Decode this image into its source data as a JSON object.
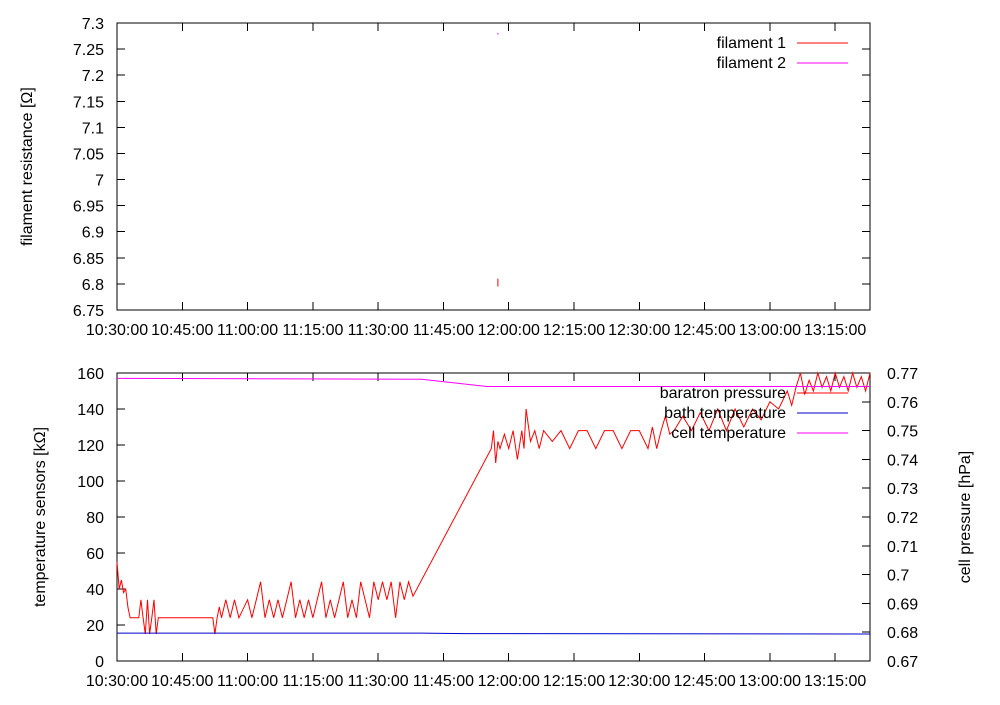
{
  "chart_data": [
    {
      "type": "line",
      "ylabel": "filament resistance [Ω]",
      "ylim": [
        6.75,
        7.3
      ],
      "yticks": [
        "6.75",
        "6.8",
        "6.85",
        "6.9",
        "6.95",
        "7",
        "7.05",
        "7.1",
        "7.15",
        "7.2",
        "7.25",
        "7.3"
      ],
      "xticks": [
        "10:30:00",
        "10:45:00",
        "11:00:00",
        "11:15:00",
        "11:30:00",
        "11:45:00",
        "12:00:00",
        "12:15:00",
        "12:30:00",
        "12:45:00",
        "13:00:00",
        "13:15:00"
      ],
      "xlim": [
        "10:30:00",
        "13:23:00"
      ],
      "legend_position": "top-right",
      "grid": false,
      "series": [
        {
          "name": "filament 1",
          "color": "#ff0000",
          "points": [
            [
              "11:57:30",
              6.795
            ],
            [
              "11:57:30",
              6.81
            ]
          ]
        },
        {
          "name": "filament 2",
          "color": "#ff00ff",
          "points": [
            [
              "11:57:30",
              7.278
            ],
            [
              "11:57:30",
              7.281
            ]
          ]
        }
      ]
    },
    {
      "type": "line",
      "ylabel": "temperature sensors [kΩ]",
      "y2label": "cell pressure [hPa]",
      "ylim": [
        0,
        160
      ],
      "y2lim": [
        0.67,
        0.77
      ],
      "yticks": [
        "0",
        "20",
        "40",
        "60",
        "80",
        "100",
        "120",
        "140",
        "160"
      ],
      "y2ticks": [
        "0.67",
        "0.68",
        "0.69",
        "0.7",
        "0.71",
        "0.72",
        "0.73",
        "0.74",
        "0.75",
        "0.76",
        "0.77"
      ],
      "xticks": [
        "10:30:00",
        "10:45:00",
        "11:00:00",
        "11:15:00",
        "11:30:00",
        "11:45:00",
        "12:00:00",
        "12:15:00",
        "12:30:00",
        "12:45:00",
        "13:00:00",
        "13:15:00"
      ],
      "xlim": [
        "10:30:00",
        "13:23:00"
      ],
      "legend_position": "top-right",
      "grid": false,
      "series": [
        {
          "name": "baratron pressure",
          "color": "#ff0000",
          "axis": "y",
          "points": [
            [
              "10:30:00",
              55
            ],
            [
              "10:30:30",
              40
            ],
            [
              "10:31:00",
              45
            ],
            [
              "10:31:30",
              38
            ],
            [
              "10:32:00",
              40
            ],
            [
              "10:32:30",
              30
            ],
            [
              "10:33:00",
              24
            ],
            [
              "10:35:00",
              24
            ],
            [
              "10:35:30",
              34
            ],
            [
              "10:36:00",
              24
            ],
            [
              "10:36:30",
              15
            ],
            [
              "10:37:00",
              34
            ],
            [
              "10:37:30",
              15
            ],
            [
              "10:38:00",
              24
            ],
            [
              "10:38:30",
              34
            ],
            [
              "10:39:00",
              15
            ],
            [
              "10:39:30",
              24
            ],
            [
              "10:41:00",
              24
            ],
            [
              "10:45:00",
              24
            ],
            [
              "10:50:00",
              24
            ],
            [
              "10:52:00",
              24
            ],
            [
              "10:52:30",
              15
            ],
            [
              "10:53:00",
              24
            ],
            [
              "10:53:30",
              30
            ],
            [
              "10:54:00",
              24
            ],
            [
              "10:55:00",
              34
            ],
            [
              "10:56:00",
              24
            ],
            [
              "10:57:00",
              34
            ],
            [
              "10:58:00",
              24
            ],
            [
              "11:00:00",
              34
            ],
            [
              "11:01:00",
              24
            ],
            [
              "11:02:00",
              34
            ],
            [
              "11:03:00",
              44
            ],
            [
              "11:04:00",
              24
            ],
            [
              "11:05:00",
              34
            ],
            [
              "11:06:00",
              24
            ],
            [
              "11:07:00",
              34
            ],
            [
              "11:08:00",
              24
            ],
            [
              "11:09:00",
              34
            ],
            [
              "11:10:00",
              44
            ],
            [
              "11:11:00",
              24
            ],
            [
              "11:12:00",
              34
            ],
            [
              "11:13:00",
              24
            ],
            [
              "11:14:00",
              34
            ],
            [
              "11:15:00",
              24
            ],
            [
              "11:16:00",
              34
            ],
            [
              "11:17:00",
              44
            ],
            [
              "11:18:00",
              24
            ],
            [
              "11:19:00",
              34
            ],
            [
              "11:20:00",
              24
            ],
            [
              "11:21:00",
              34
            ],
            [
              "11:22:00",
              44
            ],
            [
              "11:23:00",
              24
            ],
            [
              "11:24:00",
              34
            ],
            [
              "11:25:00",
              24
            ],
            [
              "11:26:00",
              44
            ],
            [
              "11:27:00",
              34
            ],
            [
              "11:28:00",
              24
            ],
            [
              "11:29:00",
              44
            ],
            [
              "11:30:00",
              34
            ],
            [
              "11:31:00",
              44
            ],
            [
              "11:32:00",
              34
            ],
            [
              "11:33:00",
              44
            ],
            [
              "11:34:00",
              24
            ],
            [
              "11:35:00",
              44
            ],
            [
              "11:36:00",
              34
            ],
            [
              "11:37:00",
              44
            ],
            [
              "11:38:00",
              36
            ],
            [
              "11:56:00",
              118
            ],
            [
              "11:56:30",
              128
            ],
            [
              "11:57:00",
              110
            ],
            [
              "11:57:30",
              122
            ],
            [
              "11:58:00",
              118
            ],
            [
              "11:59:00",
              126
            ],
            [
              "12:00:00",
              118
            ],
            [
              "12:01:00",
              128
            ],
            [
              "12:02:00",
              112
            ],
            [
              "12:03:00",
              128
            ],
            [
              "12:03:30",
              118
            ],
            [
              "12:04:00",
              140
            ],
            [
              "12:05:00",
              122
            ],
            [
              "12:06:00",
              128
            ],
            [
              "12:07:00",
              118
            ],
            [
              "12:08:00",
              128
            ],
            [
              "12:10:00",
              122
            ],
            [
              "12:12:00",
              128
            ],
            [
              "12:14:00",
              118
            ],
            [
              "12:16:00",
              128
            ],
            [
              "12:18:00",
              128
            ],
            [
              "12:20:00",
              118
            ],
            [
              "12:22:00",
              128
            ],
            [
              "12:24:00",
              128
            ],
            [
              "12:26:00",
              118
            ],
            [
              "12:28:00",
              128
            ],
            [
              "12:30:00",
              128
            ],
            [
              "12:32:00",
              118
            ],
            [
              "12:33:00",
              130
            ],
            [
              "12:34:00",
              118
            ],
            [
              "12:35:00",
              128
            ],
            [
              "12:36:00",
              136
            ],
            [
              "12:37:00",
              126
            ],
            [
              "12:38:00",
              128
            ],
            [
              "12:40:00",
              136
            ],
            [
              "12:42:00",
              128
            ],
            [
              "12:44:00",
              138
            ],
            [
              "12:46:00",
              128
            ],
            [
              "12:48:00",
              140
            ],
            [
              "12:50:00",
              128
            ],
            [
              "12:52:00",
              140
            ],
            [
              "12:54:00",
              130
            ],
            [
              "12:56:00",
              140
            ],
            [
              "12:58:00",
              134
            ],
            [
              "13:00:00",
              144
            ],
            [
              "13:02:00",
              140
            ],
            [
              "13:04:00",
              150
            ],
            [
              "13:05:00",
              142
            ],
            [
              "13:06:00",
              152
            ],
            [
              "13:07:00",
              160
            ],
            [
              "13:08:00",
              148
            ],
            [
              "13:09:00",
              156
            ],
            [
              "13:10:00",
              150
            ],
            [
              "13:11:00",
              160
            ],
            [
              "13:12:00",
              152
            ],
            [
              "13:13:00",
              158
            ],
            [
              "13:14:00",
              150
            ],
            [
              "13:15:00",
              160
            ],
            [
              "13:16:00",
              152
            ],
            [
              "13:17:00",
              158
            ],
            [
              "13:18:00",
              150
            ],
            [
              "13:19:00",
              160
            ],
            [
              "13:20:00",
              152
            ],
            [
              "13:21:00",
              158
            ],
            [
              "13:22:00",
              150
            ],
            [
              "13:23:00",
              160
            ]
          ]
        },
        {
          "name": "bath temperature",
          "color": "#0000cc",
          "axis": "y",
          "points": [
            [
              "10:30:00",
              15.5
            ],
            [
              "11:40:00",
              15.5
            ],
            [
              "11:50:00",
              15.2
            ],
            [
              "13:23:00",
              15.0
            ]
          ]
        },
        {
          "name": "cell temperature",
          "color": "#ff00ff",
          "axis": "y",
          "points": [
            [
              "10:30:00",
              157.0
            ],
            [
              "11:40:00",
              156.5
            ],
            [
              "11:55:00",
              152.5
            ],
            [
              "13:23:00",
              152.5
            ]
          ]
        }
      ]
    }
  ]
}
